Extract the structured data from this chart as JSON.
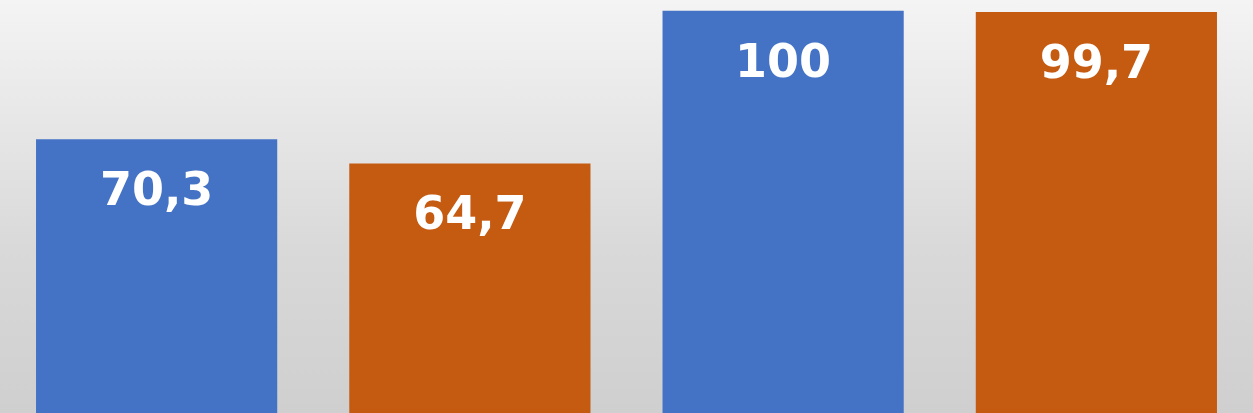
{
  "chart_data": {
    "type": "bar",
    "categories": [
      null,
      null,
      null,
      null
    ],
    "values": [
      70.3,
      64.7,
      100,
      99.7
    ],
    "colors": [
      "#4472c4",
      "#c55a11",
      "#4472c4",
      "#c55a11"
    ],
    "value_labels": [
      "70,3",
      "64,7",
      "100",
      "99,7"
    ],
    "ylim": [
      7,
      102.5
    ]
  }
}
